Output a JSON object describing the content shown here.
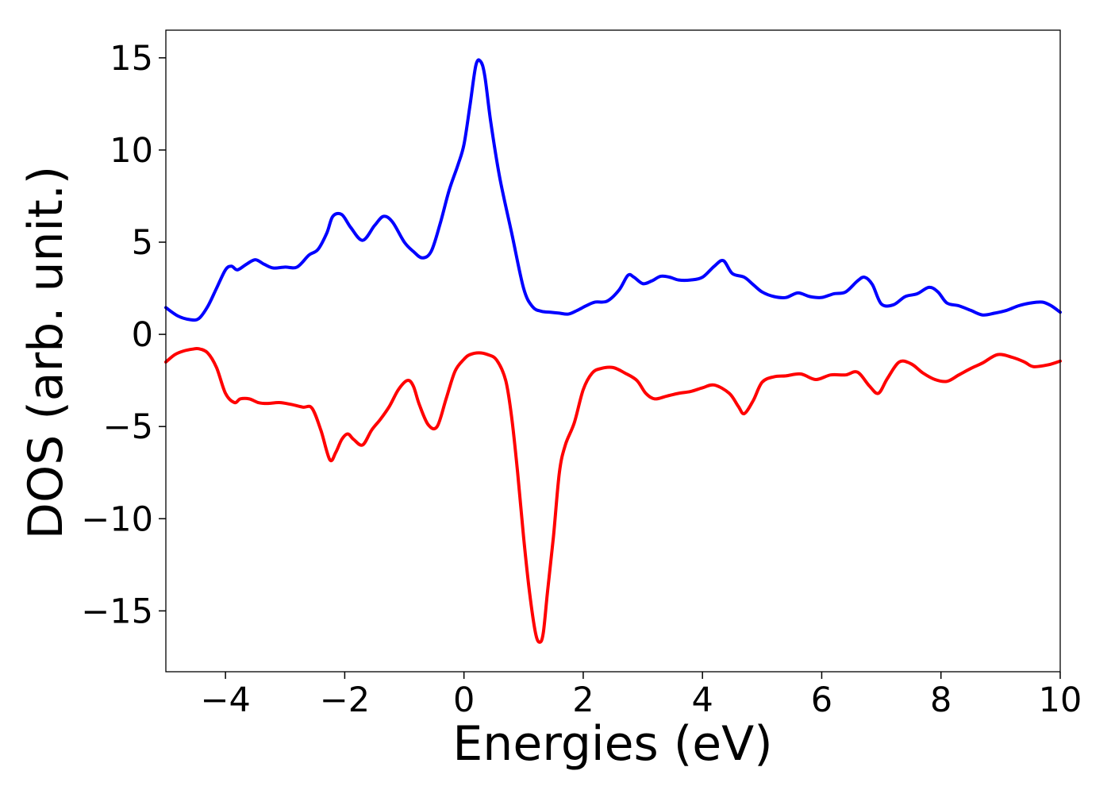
{
  "chart_data": {
    "type": "line",
    "title": "",
    "xlabel": "Energies (eV)",
    "ylabel": "DOS (arb. unit.)",
    "xlim": [
      -5,
      10
    ],
    "ylim": [
      -18.3,
      16.5
    ],
    "xticks": [
      -4,
      -2,
      0,
      2,
      4,
      6,
      8,
      10
    ],
    "xtick_labels": [
      "−4",
      "−2",
      "0",
      "2",
      "4",
      "6",
      "8",
      "10"
    ],
    "yticks": [
      15,
      10,
      5,
      0,
      -5,
      -10,
      -15
    ],
    "ytick_labels": [
      "15",
      "10",
      "5",
      "0",
      "−5",
      "−10",
      "−15"
    ],
    "grid": false,
    "legend": "none",
    "series": [
      {
        "color": "#0000ff",
        "x": [
          -5.0,
          -4.8,
          -4.6,
          -4.45,
          -4.3,
          -4.15,
          -4.0,
          -3.9,
          -3.8,
          -3.65,
          -3.5,
          -3.35,
          -3.2,
          -3.0,
          -2.8,
          -2.6,
          -2.45,
          -2.3,
          -2.2,
          -2.05,
          -1.9,
          -1.7,
          -1.5,
          -1.35,
          -1.2,
          -1.0,
          -0.85,
          -0.7,
          -0.55,
          -0.4,
          -0.25,
          -0.1,
          0.0,
          0.1,
          0.2,
          0.28,
          0.35,
          0.45,
          0.6,
          0.8,
          1.0,
          1.15,
          1.3,
          1.45,
          1.6,
          1.75,
          1.9,
          2.05,
          2.2,
          2.4,
          2.6,
          2.75,
          2.85,
          3.0,
          3.15,
          3.3,
          3.45,
          3.6,
          3.8,
          4.0,
          4.2,
          4.35,
          4.5,
          4.7,
          4.85,
          5.0,
          5.2,
          5.4,
          5.6,
          5.8,
          6.0,
          6.2,
          6.4,
          6.6,
          6.72,
          6.85,
          7.0,
          7.2,
          7.4,
          7.6,
          7.8,
          7.95,
          8.1,
          8.3,
          8.5,
          8.7,
          8.9,
          9.1,
          9.3,
          9.5,
          9.7,
          9.85,
          10.0
        ],
        "y": [
          1.45,
          1.0,
          0.8,
          0.85,
          1.5,
          2.5,
          3.5,
          3.7,
          3.5,
          3.8,
          4.05,
          3.8,
          3.6,
          3.65,
          3.65,
          4.3,
          4.6,
          5.5,
          6.4,
          6.5,
          5.8,
          5.1,
          5.9,
          6.4,
          6.1,
          5.0,
          4.5,
          4.15,
          4.5,
          6.0,
          7.8,
          9.2,
          10.3,
          12.4,
          14.6,
          14.8,
          14.0,
          11.5,
          8.5,
          5.5,
          2.5,
          1.5,
          1.25,
          1.2,
          1.15,
          1.1,
          1.3,
          1.55,
          1.75,
          1.8,
          2.4,
          3.2,
          3.1,
          2.75,
          2.9,
          3.15,
          3.1,
          2.95,
          2.95,
          3.1,
          3.7,
          4.0,
          3.3,
          3.1,
          2.7,
          2.3,
          2.05,
          2.0,
          2.25,
          2.05,
          2.0,
          2.2,
          2.3,
          2.9,
          3.1,
          2.7,
          1.65,
          1.6,
          2.05,
          2.2,
          2.55,
          2.3,
          1.7,
          1.55,
          1.3,
          1.05,
          1.15,
          1.3,
          1.55,
          1.7,
          1.75,
          1.55,
          1.2
        ]
      },
      {
        "color": "#ff0000",
        "x": [
          -5.0,
          -4.85,
          -4.7,
          -4.55,
          -4.45,
          -4.3,
          -4.15,
          -4.0,
          -3.85,
          -3.75,
          -3.6,
          -3.45,
          -3.3,
          -3.1,
          -2.9,
          -2.7,
          -2.55,
          -2.4,
          -2.25,
          -2.15,
          -2.05,
          -1.95,
          -1.85,
          -1.7,
          -1.55,
          -1.4,
          -1.25,
          -1.1,
          -0.95,
          -0.85,
          -0.75,
          -0.6,
          -0.45,
          -0.3,
          -0.15,
          0.0,
          0.1,
          0.25,
          0.4,
          0.55,
          0.7,
          0.8,
          0.9,
          1.0,
          1.1,
          1.2,
          1.27,
          1.33,
          1.4,
          1.5,
          1.6,
          1.7,
          1.85,
          2.0,
          2.15,
          2.3,
          2.5,
          2.7,
          2.9,
          3.05,
          3.2,
          3.4,
          3.6,
          3.8,
          4.0,
          4.2,
          4.45,
          4.6,
          4.7,
          4.85,
          5.0,
          5.2,
          5.4,
          5.65,
          5.9,
          6.15,
          6.4,
          6.6,
          6.8,
          6.95,
          7.1,
          7.3,
          7.5,
          7.7,
          7.9,
          8.1,
          8.3,
          8.5,
          8.7,
          8.95,
          9.2,
          9.4,
          9.55,
          9.8,
          10.0
        ],
        "y": [
          -1.5,
          -1.1,
          -0.9,
          -0.8,
          -0.78,
          -1.0,
          -1.8,
          -3.2,
          -3.7,
          -3.5,
          -3.5,
          -3.7,
          -3.75,
          -3.7,
          -3.8,
          -3.95,
          -4.0,
          -5.2,
          -6.8,
          -6.4,
          -5.7,
          -5.4,
          -5.7,
          -6.0,
          -5.2,
          -4.6,
          -3.9,
          -3.0,
          -2.5,
          -2.8,
          -3.8,
          -4.9,
          -5.0,
          -3.5,
          -2.0,
          -1.35,
          -1.1,
          -1.0,
          -1.1,
          -1.4,
          -2.5,
          -4.5,
          -7.5,
          -11.0,
          -14.0,
          -16.2,
          -16.7,
          -16.2,
          -14.0,
          -11.0,
          -7.5,
          -6.0,
          -4.8,
          -3.0,
          -2.1,
          -1.85,
          -1.8,
          -2.1,
          -2.5,
          -3.2,
          -3.5,
          -3.35,
          -3.2,
          -3.1,
          -2.9,
          -2.75,
          -3.2,
          -3.9,
          -4.3,
          -3.6,
          -2.6,
          -2.3,
          -2.25,
          -2.15,
          -2.45,
          -2.2,
          -2.2,
          -2.05,
          -2.8,
          -3.2,
          -2.4,
          -1.5,
          -1.6,
          -2.1,
          -2.45,
          -2.55,
          -2.2,
          -1.85,
          -1.55,
          -1.1,
          -1.25,
          -1.5,
          -1.75,
          -1.65,
          -1.45
        ]
      }
    ]
  }
}
